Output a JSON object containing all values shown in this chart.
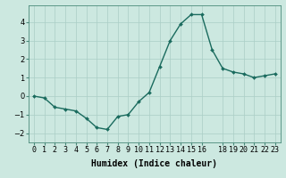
{
  "x": [
    0,
    1,
    2,
    3,
    4,
    5,
    6,
    7,
    8,
    9,
    10,
    11,
    12,
    13,
    14,
    15,
    16,
    17,
    18,
    19,
    20,
    21,
    22,
    23
  ],
  "y": [
    0.0,
    -0.1,
    -0.6,
    -0.7,
    -0.8,
    -1.2,
    -1.7,
    -1.8,
    -1.1,
    -1.0,
    -0.3,
    0.2,
    1.6,
    3.0,
    3.9,
    4.4,
    4.4,
    2.5,
    1.5,
    1.3,
    1.2,
    1.0,
    1.1,
    1.2
  ],
  "line_color": "#1a6b5e",
  "marker": "D",
  "marker_size": 2,
  "line_width": 1.0,
  "bg_color": "#cce8e0",
  "grid_color": "#aacec6",
  "xlabel": "Humidex (Indice chaleur)",
  "xlim": [
    -0.5,
    23.5
  ],
  "ylim": [
    -2.5,
    4.9
  ],
  "yticks": [
    -2,
    -1,
    0,
    1,
    2,
    3,
    4
  ],
  "xticks": [
    0,
    1,
    2,
    3,
    4,
    5,
    6,
    7,
    8,
    9,
    10,
    11,
    12,
    13,
    14,
    15,
    16,
    18,
    19,
    20,
    21,
    22,
    23
  ],
  "xtick_labels": [
    "0",
    "1",
    "2",
    "3",
    "4",
    "5",
    "6",
    "7",
    "8",
    "9",
    "10",
    "11",
    "12",
    "13",
    "14",
    "15",
    "16",
    "18",
    "19",
    "20",
    "21",
    "22",
    "23"
  ],
  "tick_fontsize": 6,
  "xlabel_fontsize": 7
}
